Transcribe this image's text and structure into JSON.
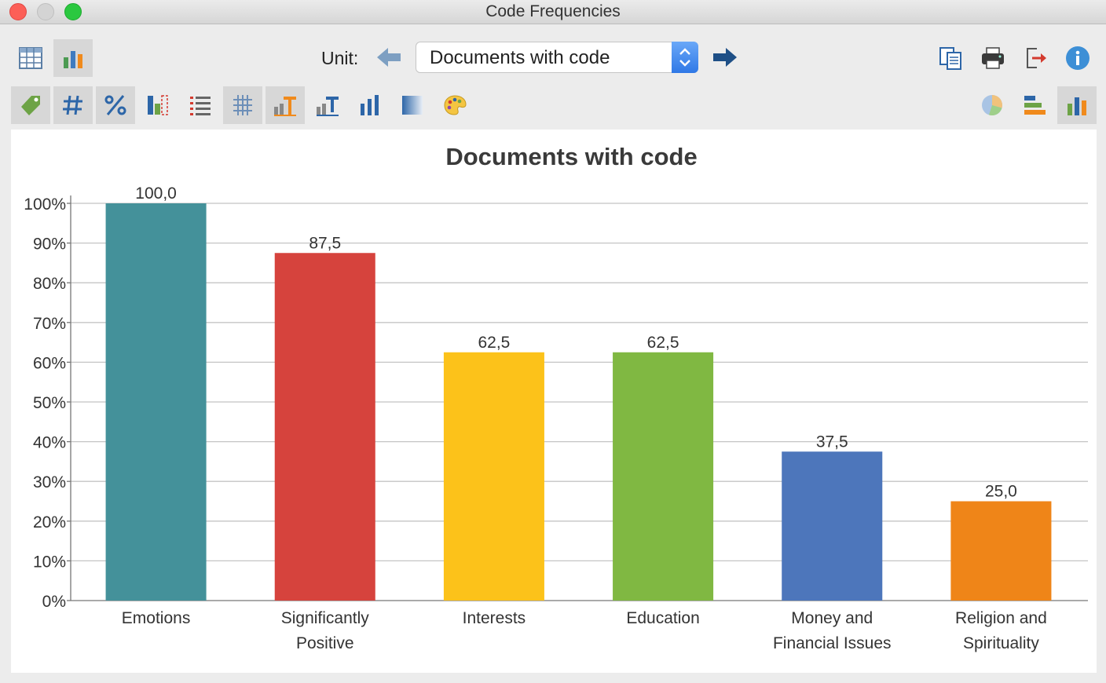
{
  "window": {
    "title": "Code Frequencies"
  },
  "toolbar": {
    "view_buttons": [
      {
        "name": "table-view-icon",
        "selected": false
      },
      {
        "name": "chart-view-icon",
        "selected": true
      }
    ],
    "unit_label": "Unit:",
    "unit_value": "Documents with code",
    "right_buttons": [
      "copy-icon",
      "print-icon",
      "export-icon",
      "info-icon"
    ]
  },
  "format_toolbar": {
    "left_buttons": [
      {
        "name": "tag-icon",
        "selected": true
      },
      {
        "name": "hash-icon",
        "selected": true
      },
      {
        "name": "percent-icon",
        "selected": true
      },
      {
        "name": "bar-outline-icon",
        "selected": false
      },
      {
        "name": "list-icon",
        "selected": false
      },
      {
        "name": "grid-icon",
        "selected": true
      },
      {
        "name": "chart-text-icon",
        "selected": true
      },
      {
        "name": "chart-label-icon",
        "selected": false
      },
      {
        "name": "bars-icon",
        "selected": false
      },
      {
        "name": "gradient-icon",
        "selected": false
      },
      {
        "name": "palette-icon",
        "selected": false
      }
    ],
    "right_buttons": [
      {
        "name": "pie-chart-icon",
        "selected": false
      },
      {
        "name": "horizontal-bar-icon",
        "selected": false
      },
      {
        "name": "vertical-bar-icon",
        "selected": true
      }
    ]
  },
  "chart_data": {
    "type": "bar",
    "title": "Documents with code",
    "xlabel": "",
    "ylabel": "",
    "ylim": [
      0,
      100
    ],
    "yticks": [
      0,
      10,
      20,
      30,
      40,
      50,
      60,
      70,
      80,
      90,
      100
    ],
    "ytick_labels": [
      "0%",
      "10%",
      "20%",
      "30%",
      "40%",
      "50%",
      "60%",
      "70%",
      "80%",
      "90%",
      "100%"
    ],
    "grid": true,
    "legend": "none",
    "categories": [
      [
        "Emotions"
      ],
      [
        "Significantly",
        "Positive"
      ],
      [
        "Interests"
      ],
      [
        "Education"
      ],
      [
        "Money and",
        "Financial Issues"
      ],
      [
        "Religion and",
        "Spirituality"
      ]
    ],
    "values": [
      100.0,
      87.5,
      62.5,
      62.5,
      37.5,
      25.0
    ],
    "value_labels": [
      "100,0",
      "87,5",
      "62,5",
      "62,5",
      "37,5",
      "25,0"
    ],
    "colors": [
      "#44919a",
      "#d6433d",
      "#fcc21a",
      "#80b842",
      "#4d76bb",
      "#ef8518"
    ]
  }
}
